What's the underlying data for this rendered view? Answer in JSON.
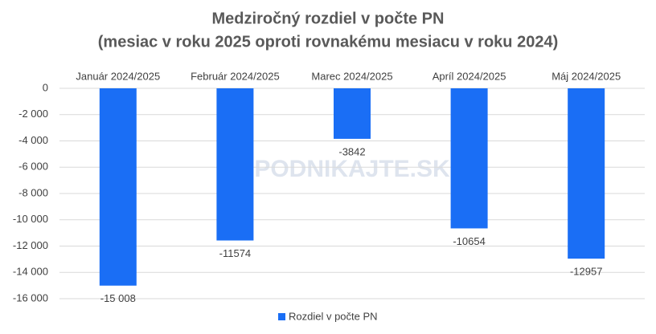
{
  "chart_data": {
    "type": "bar",
    "title": "Medziročný rozdiel v počte PN",
    "subtitle": "(mesiac v roku 2025 oproti rovnakému mesiacu v roku 2024)",
    "categories": [
      "Január 2024/2025",
      "Február 2024/2025",
      "Marec 2024/2025",
      "Apríl 2024/2025",
      "Máj 2024/2025"
    ],
    "series": [
      {
        "name": "Rozdiel v počte PN",
        "color": "#1a6ef5",
        "values": [
          -15008,
          -11574,
          -3842,
          -10654,
          -12957
        ],
        "value_labels": [
          "-15 008",
          "-11574",
          "-3842",
          "-10654",
          "-12957"
        ]
      }
    ],
    "ylim": [
      -16000,
      0
    ],
    "yticks": [
      0,
      {
        "value": -2000,
        "label": "-2 000"
      },
      {
        "value": -4000,
        "label": "-4 000"
      },
      {
        "value": -6000,
        "label": "-6 000"
      },
      {
        "value": -8000,
        "label": "-8 000"
      },
      {
        "value": -10000,
        "label": "-10 000"
      },
      {
        "value": -12000,
        "label": "-12 000"
      },
      {
        "value": -14000,
        "label": "-14 000"
      },
      {
        "value": -16000,
        "label": "-16 000"
      }
    ],
    "grid": true,
    "legend": "bottom",
    "watermark": "PODNIKAJTE.SK"
  }
}
